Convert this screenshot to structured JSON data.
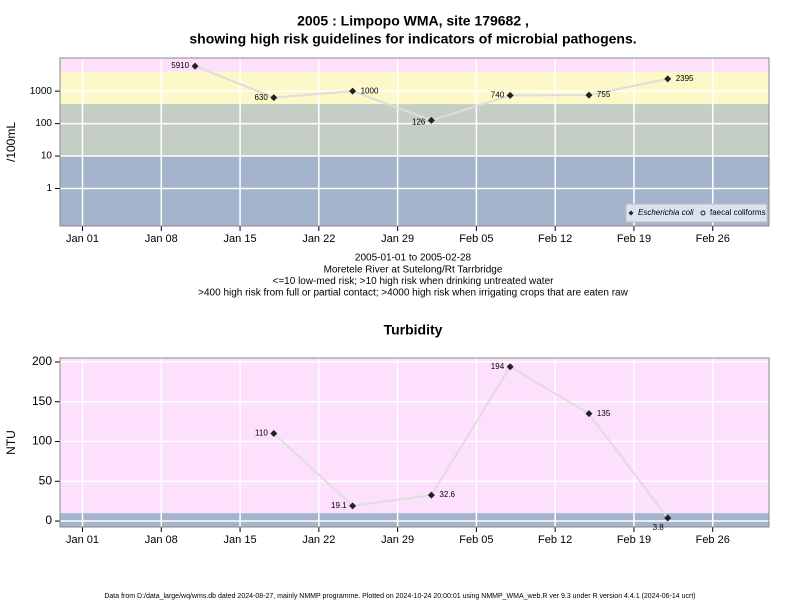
{
  "chart_data": [
    {
      "type": "line",
      "title": [
        "2005 : Limpopo WMA, site 179682 ,",
        "showing high risk guidelines for indicators of microbial pathogens."
      ],
      "ylabel": "/100mL",
      "log_y": true,
      "grid": true,
      "legend": "bottom-right",
      "x": [
        "2005-01-11",
        "2005-01-18",
        "2005-01-25",
        "2005-02-01",
        "2005-02-08",
        "2005-02-15",
        "2005-02-22"
      ],
      "series": [
        {
          "name": "Escherichia coli",
          "color": "#222222",
          "line_color": "#dddddd",
          "values": [
            5910,
            630,
            1000,
            126,
            740,
            755,
            2395
          ]
        },
        {
          "name": "faecal coliforms",
          "color": "#222222",
          "line_color": "#dddddd",
          "values": [
            null,
            null,
            null,
            null,
            null,
            null,
            null
          ]
        }
      ],
      "bands": [
        {
          "to": 10,
          "color": "#a3b4cc"
        },
        {
          "to": 400,
          "color": "#c5cec4"
        },
        {
          "to": 4000,
          "color": "#fdf8c8"
        },
        {
          "to": 10500,
          "color": "#fde0fc"
        }
      ],
      "xlim": [
        "2004-12-30",
        "2005-03-03"
      ],
      "xticks": [
        {
          "value": "2005-01-01",
          "label": "Jan 01"
        },
        {
          "value": "2005-01-08",
          "label": "Jan 08"
        },
        {
          "value": "2005-01-15",
          "label": "Jan 15"
        },
        {
          "value": "2005-01-22",
          "label": "Jan 22"
        },
        {
          "value": "2005-01-29",
          "label": "Jan 29"
        },
        {
          "value": "2005-02-05",
          "label": "Feb 05"
        },
        {
          "value": "2005-02-12",
          "label": "Feb 12"
        },
        {
          "value": "2005-02-19",
          "label": "Feb 19"
        },
        {
          "value": "2005-02-26",
          "label": "Feb 26"
        }
      ],
      "ylim": [
        0.07,
        10500
      ],
      "yticks": [
        1,
        10,
        100,
        1000
      ],
      "notes": [
        "2005-01-01 to 2005-02-28",
        "Moretele River at Sutelong/Rt Tarrbridge",
        "<=10 low-med risk; >10 high risk when drinking untreated water",
        ">400 high risk from full or partial contact; >4000 high risk when irrigating crops that are eaten raw"
      ]
    },
    {
      "type": "line",
      "title": [
        "Turbidity"
      ],
      "ylabel": "NTU",
      "log_y": false,
      "grid": true,
      "x": [
        "2005-01-18",
        "2005-01-25",
        "2005-02-01",
        "2005-02-08",
        "2005-02-15",
        "2005-02-22"
      ],
      "series": [
        {
          "name": "Turbidity",
          "color": "#222222",
          "line_color": "#dddddd",
          "values": [
            110,
            19.1,
            32.6,
            194,
            135,
            3.8
          ]
        }
      ],
      "bands": [
        {
          "to": 10,
          "color": "#a3b4cc"
        },
        {
          "to": 205,
          "color": "#fde0fc"
        }
      ],
      "xlim": [
        "2004-12-30",
        "2005-03-03"
      ],
      "xticks": [
        {
          "value": "2005-01-01",
          "label": "Jan 01"
        },
        {
          "value": "2005-01-08",
          "label": "Jan 08"
        },
        {
          "value": "2005-01-15",
          "label": "Jan 15"
        },
        {
          "value": "2005-01-22",
          "label": "Jan 22"
        },
        {
          "value": "2005-01-29",
          "label": "Jan 29"
        },
        {
          "value": "2005-02-05",
          "label": "Feb 05"
        },
        {
          "value": "2005-02-12",
          "label": "Feb 12"
        },
        {
          "value": "2005-02-19",
          "label": "Feb 19"
        },
        {
          "value": "2005-02-26",
          "label": "Feb 26"
        }
      ],
      "ylim": [
        -7.5,
        205
      ],
      "yticks": [
        0,
        50,
        100,
        150,
        200
      ]
    }
  ],
  "footer": "Data from D:/data_large/wq/wms.db dated 2024-08-27, mainly NMMP programme. Plotted on 2024-10-24 20:00:01 using NMMP_WMA_web.R ver 9.3 under R version 4.4.1 (2024-06-14 ucrt)"
}
